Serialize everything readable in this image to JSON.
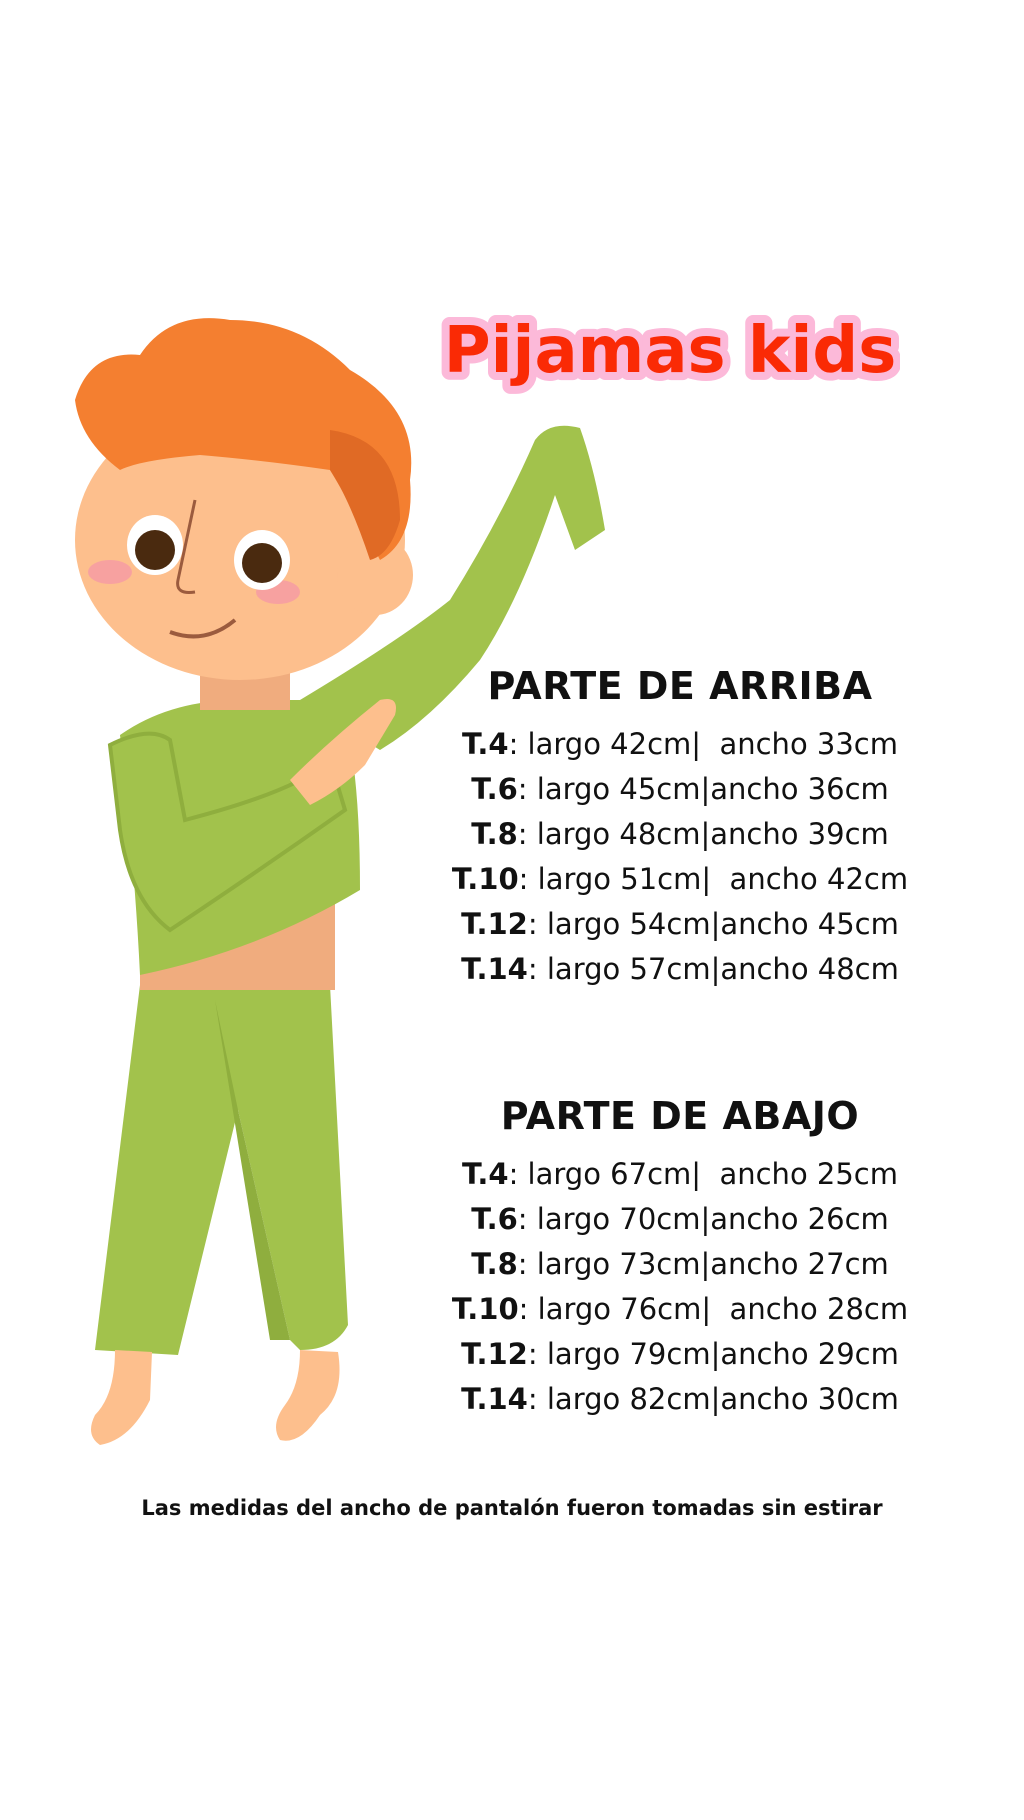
{
  "logo": {
    "text": "Pijamas kids",
    "fill_color": "#fa2a05",
    "outline_color": "#fcb9d9"
  },
  "top": {
    "title": "PARTE DE ARRIBA",
    "rows": [
      {
        "size": "T.4",
        "text": ": largo 42cm|  ancho 33cm"
      },
      {
        "size": "T.6",
        "text": ": largo 45cm|ancho 36cm"
      },
      {
        "size": "T.8",
        "text": ": largo 48cm|ancho 39cm"
      },
      {
        "size": "T.10",
        "text": ": largo 51cm|  ancho 42cm"
      },
      {
        "size": "T.12",
        "text": ": largo 54cm|ancho 45cm"
      },
      {
        "size": "T.14",
        "text": ": largo 57cm|ancho 48cm"
      }
    ]
  },
  "bottom": {
    "title": "PARTE DE ABAJO",
    "rows": [
      {
        "size": "T.4",
        "text": ": largo 67cm|  ancho 25cm"
      },
      {
        "size": "T.6",
        "text": ": largo 70cm|ancho 26cm"
      },
      {
        "size": "T.8",
        "text": ": largo 73cm|ancho 27cm"
      },
      {
        "size": "T.10",
        "text": ": largo 76cm|  ancho 28cm"
      },
      {
        "size": "T.12",
        "text": ": largo 79cm|ancho 29cm"
      },
      {
        "size": "T.14",
        "text": ": largo 82cm|ancho 30cm"
      }
    ]
  },
  "footer": "Las medidas del ancho de pantalón fueron tomadas sin estirar",
  "colors": {
    "pajama_green": "#a2c24c",
    "hair_orange": "#f47f30",
    "skin": "#fdbf8d"
  }
}
